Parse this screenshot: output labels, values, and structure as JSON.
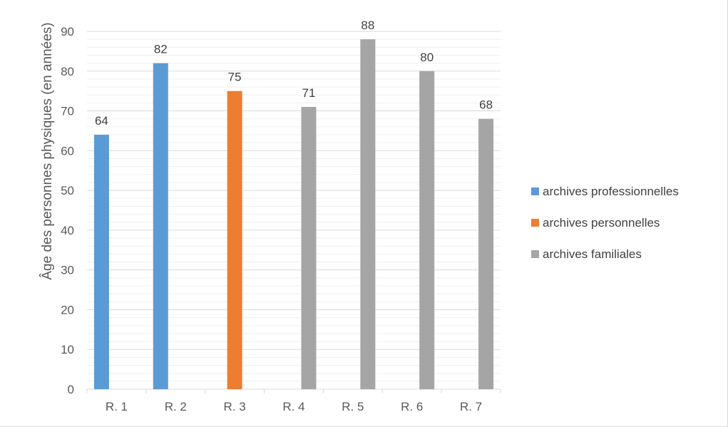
{
  "chart_data": {
    "type": "bar",
    "title": "",
    "xlabel": "",
    "ylabel": "Âge des personnes physiques (en années)",
    "ylim": [
      0,
      90
    ],
    "y_ticks": [
      0,
      10,
      20,
      30,
      40,
      50,
      60,
      70,
      80,
      90
    ],
    "grid": true,
    "legend_position": "right",
    "categories": [
      "R. 1",
      "R. 2",
      "R. 3",
      "R. 4",
      "R. 5",
      "R. 6",
      "R. 7"
    ],
    "series": [
      {
        "name": "archives professionnelles",
        "color": "#5b9bd5",
        "values": [
          64,
          82,
          null,
          null,
          null,
          null,
          null
        ]
      },
      {
        "name": "archives personnelles",
        "color": "#ed7d31",
        "values": [
          null,
          null,
          75,
          null,
          null,
          null,
          null
        ]
      },
      {
        "name": "archives familiales",
        "color": "#a5a5a5",
        "values": [
          null,
          null,
          null,
          71,
          88,
          80,
          68
        ]
      }
    ]
  }
}
